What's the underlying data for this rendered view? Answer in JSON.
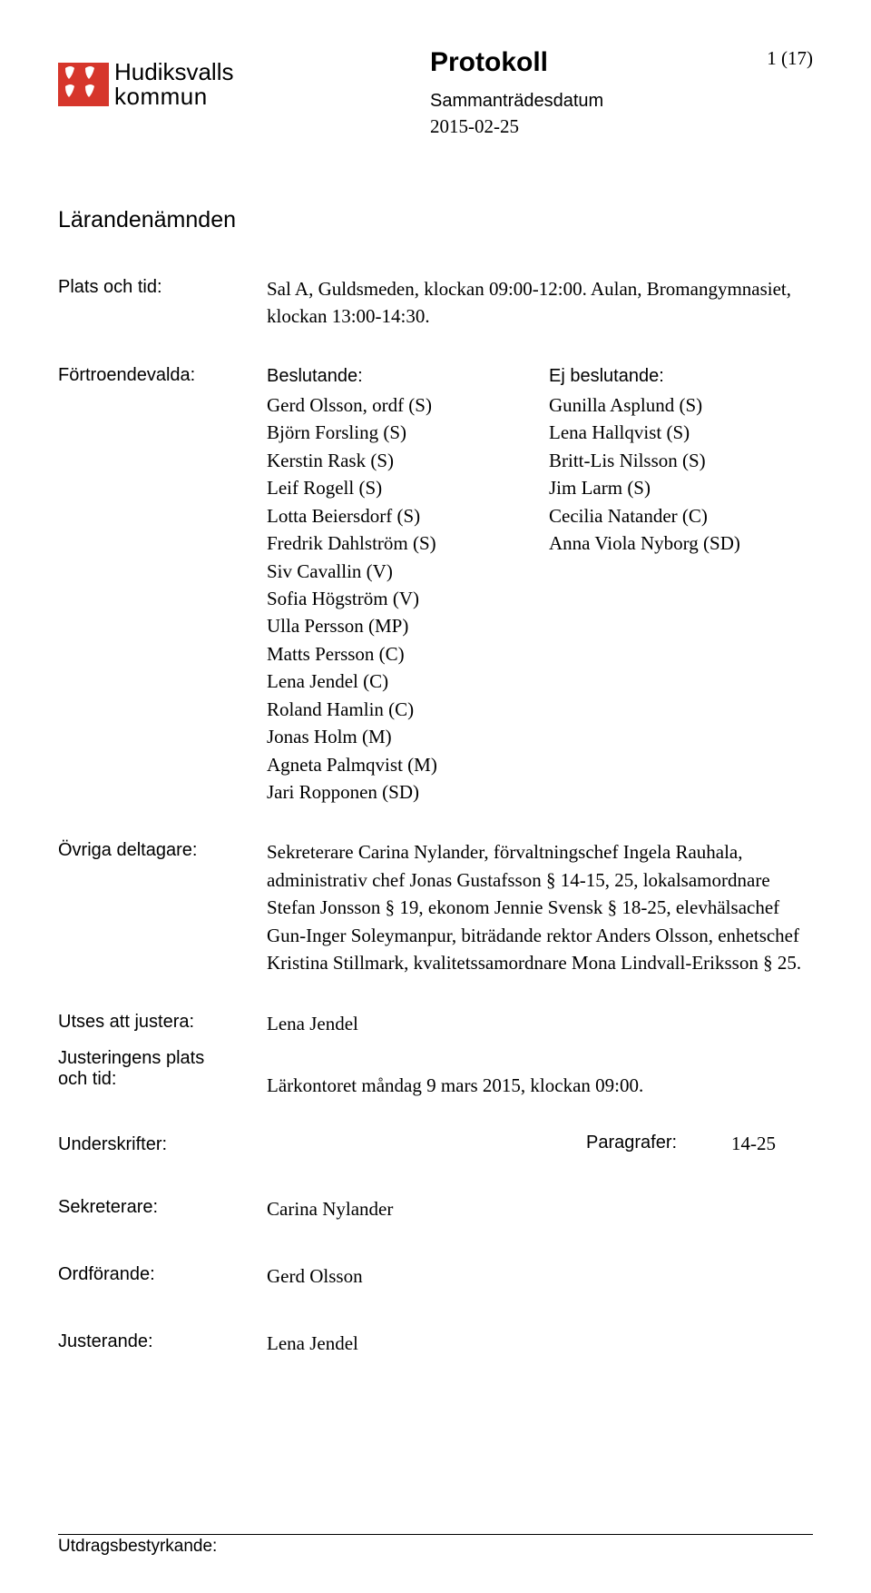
{
  "page_number": "1 (17)",
  "logo": {
    "top": "Hudiksvalls",
    "bottom": "kommun",
    "badge_color": "#d6362b"
  },
  "header": {
    "title": "Protokoll",
    "subtitle": "Sammanträdesdatum",
    "date": "2015-02-25"
  },
  "committee": "Lärandenämnden",
  "plats": {
    "label": "Plats och tid:",
    "text": "Sal A, Guldsmeden, klockan 09:00-12:00. Aulan, Bromangymnasiet, klockan 13:00-14:30."
  },
  "fortroende": {
    "label": "Förtroendevalda:",
    "beslutande_head": "Beslutande:",
    "beslutande": [
      "Gerd Olsson, ordf (S)",
      "Björn Forsling (S)",
      "Kerstin Rask (S)",
      "Leif Rogell (S)",
      "Lotta Beiersdorf (S)",
      "Fredrik Dahlström (S)",
      "Siv Cavallin (V)",
      "Sofia Högström (V)",
      "Ulla Persson (MP)",
      "Matts Persson (C)",
      "Lena Jendel (C)",
      "Roland Hamlin (C)",
      "Jonas Holm (M)",
      "Agneta Palmqvist (M)",
      "Jari Ropponen (SD)"
    ],
    "ej_head": "Ej beslutande:",
    "ej": [
      "Gunilla Asplund (S)",
      "Lena Hallqvist (S)",
      "Britt-Lis Nilsson (S)",
      "Jim Larm (S)",
      "Cecilia Natander (C)",
      "Anna Viola Nyborg (SD)"
    ]
  },
  "ovriga": {
    "label": "Övriga deltagare:",
    "text": "Sekreterare Carina Nylander, förvaltningschef Ingela Rauhala, administrativ chef Jonas Gustafsson § 14-15, 25, lokalsamordnare Stefan Jonsson § 19, ekonom Jennie Svensk § 18-25, elevhälsachef Gun-Inger Soleymanpur, biträdande rektor Anders Olsson, enhetschef Kristina Stillmark, kvalitetssamordnare Mona Lindvall-Eriksson § 25."
  },
  "utses": {
    "label": "Utses att justera:",
    "value": "Lena Jendel"
  },
  "just_plats": {
    "label1": "Justeringens plats",
    "label2": "och tid:",
    "value": "Lärkontoret måndag 9 mars 2015, klockan 09:00."
  },
  "underskrifter": {
    "label": "Underskrifter:",
    "para_label": "Paragrafer:",
    "para_value": "14-25"
  },
  "sek": {
    "label": "Sekreterare:",
    "value": "Carina Nylander"
  },
  "ordf": {
    "label": "Ordförande:",
    "value": "Gerd Olsson"
  },
  "just": {
    "label": "Justerande:",
    "value": "Lena Jendel"
  },
  "footer": {
    "label": "Utdragsbestyrkande:"
  }
}
